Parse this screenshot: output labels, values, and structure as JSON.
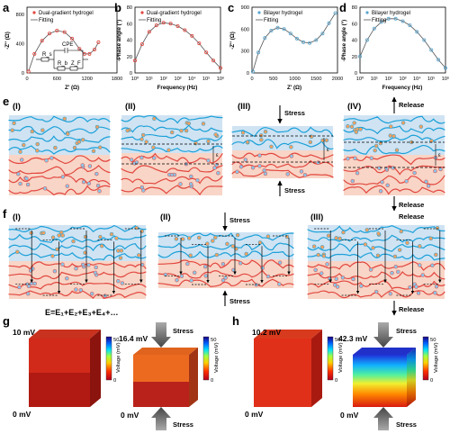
{
  "panels": {
    "a": {
      "label": "a",
      "ylabel": "-Z'' (Ω)",
      "xlabel": "Z' (Ω)",
      "xticks": [
        "0",
        "600",
        "1200",
        "1800"
      ],
      "yticks": [
        "0",
        "400",
        "800"
      ],
      "legend_data": "Dual-gradient hydrogel",
      "legend_fit": "Fitting",
      "circuit": {
        "rs": "R_s",
        "cpe": "CPE",
        "rb": "R_b",
        "zf": "Z_F"
      }
    },
    "b": {
      "label": "b",
      "ylabel": "-Phase angle (°)",
      "xlabel": "Frequency (Hz)",
      "xticks": [
        "10⁰",
        "10¹",
        "10²",
        "10³",
        "10⁴",
        "10⁵",
        "10⁶"
      ],
      "yticks": [
        "0",
        "20",
        "40",
        "60",
        "80"
      ],
      "legend_data": "Dual-gradient hydrogel",
      "legend_fit": "Fitting"
    },
    "c": {
      "label": "c",
      "ylabel": "-Z'' (Ω)",
      "xlabel": "Z' (Ω)",
      "xticks": [
        "0",
        "500",
        "1000",
        "1500",
        "2000"
      ],
      "yticks": [
        "0",
        "300",
        "600",
        "900"
      ],
      "legend_data": "Bilayer hydrogel",
      "legend_fit": "Fitting"
    },
    "d": {
      "label": "d",
      "ylabel": "-Phase angle (°)",
      "xlabel": "Frequency (Hz)",
      "xticks": [
        "10⁰",
        "10¹",
        "10²",
        "10³",
        "10⁴",
        "10⁵",
        "10⁶"
      ],
      "yticks": [
        "0",
        "20",
        "40",
        "60",
        "80"
      ],
      "legend_data": "Bilayer hydrogel",
      "legend_fit": "Fitting"
    },
    "e": {
      "label": "e",
      "stages": [
        "(I)",
        "(II)",
        "(III)",
        "(IV)"
      ],
      "stress": "Stress",
      "release": "Release",
      "eps": "ε"
    },
    "f": {
      "label": "f",
      "stages": [
        "(I)",
        "(II)",
        "(III)"
      ],
      "stress": "Stress",
      "release": "Release",
      "equation": "E=E₁+E₂+E₃+E₄+…",
      "eps_labels": [
        "ε₁",
        "ε₂",
        "ε₃",
        "ε₄"
      ]
    },
    "g": {
      "label": "g",
      "left_top": "10 mV",
      "left_bottom": "0 mV",
      "right_top": "16.4 mV",
      "right_bottom": "0 mV",
      "colorbar_title": "Voltage (mV)",
      "cb_max": "50",
      "cb_min": "0",
      "stress": "Stress"
    },
    "h": {
      "label": "h",
      "left_top": "10.2 mV",
      "left_bottom": "0 mV",
      "right_top": "42.3 mV",
      "right_bottom": "0 mV",
      "colorbar_title": "Voltage (mV)",
      "cb_max": "50",
      "cb_min": "0",
      "stress": "Stress"
    }
  },
  "colors": {
    "blue_layer": "#cfe3f3",
    "red_layer": "#f8d5c6",
    "blue_chain": "#1aa0d8",
    "red_chain": "#e2463f",
    "data_a": "#e2463f",
    "data_c": "#5aa6cf",
    "fit": "#555555"
  },
  "chart_data": [
    {
      "panel": "a",
      "type": "scatter",
      "series": [
        {
          "name": "Dual-gradient hydrogel",
          "x": [
            30,
            150,
            300,
            450,
            600,
            750,
            900,
            1050,
            1150,
            1250,
            1350,
            1430
          ],
          "y": [
            20,
            260,
            440,
            540,
            580,
            560,
            470,
            330,
            260,
            260,
            320,
            420
          ]
        },
        {
          "name": "Fitting",
          "x": [
            30,
            150,
            300,
            450,
            600,
            750,
            900,
            1050,
            1150,
            1250,
            1350,
            1430
          ],
          "y": [
            20,
            260,
            440,
            540,
            580,
            560,
            470,
            330,
            260,
            260,
            320,
            420
          ]
        }
      ],
      "xlim": [
        0,
        1800
      ],
      "ylim": [
        0,
        900
      ]
    },
    {
      "panel": "b",
      "type": "scatter",
      "series": [
        {
          "name": "Dual-gradient hydrogel",
          "x": [
            0,
            0.5,
            1,
            1.5,
            2,
            2.5,
            3,
            3.5,
            4,
            4.5,
            5,
            5.5,
            6
          ],
          "y": [
            15,
            35,
            50,
            58,
            61,
            60,
            57,
            52,
            45,
            36,
            25,
            15,
            6
          ]
        },
        {
          "name": "Fitting",
          "x": [
            0,
            0.5,
            1,
            1.5,
            2,
            2.5,
            3,
            3.5,
            4,
            4.5,
            5,
            5.5,
            6
          ],
          "y": [
            15,
            35,
            50,
            58,
            61,
            60,
            57,
            52,
            45,
            36,
            25,
            15,
            6
          ]
        }
      ],
      "xlim": [
        0,
        6
      ],
      "ylim": [
        0,
        80
      ]
    },
    {
      "panel": "c",
      "type": "scatter",
      "series": [
        {
          "name": "Bilayer hydrogel",
          "x": [
            20,
            150,
            300,
            450,
            600,
            750,
            900,
            1050,
            1200,
            1350,
            1500,
            1650,
            1800,
            1950
          ],
          "y": [
            20,
            280,
            480,
            580,
            620,
            600,
            540,
            470,
            420,
            410,
            450,
            540,
            680,
            820
          ]
        },
        {
          "name": "Fitting",
          "x": [
            20,
            150,
            300,
            450,
            600,
            750,
            900,
            1050,
            1200,
            1350,
            1500,
            1650,
            1800,
            1950
          ],
          "y": [
            20,
            280,
            480,
            580,
            620,
            600,
            540,
            470,
            420,
            410,
            450,
            540,
            680,
            820
          ]
        }
      ],
      "xlim": [
        0,
        2000
      ],
      "ylim": [
        0,
        900
      ]
    },
    {
      "panel": "d",
      "type": "scatter",
      "series": [
        {
          "name": "Bilayer hydrogel",
          "x": [
            0,
            0.5,
            1,
            1.5,
            2,
            2.5,
            3,
            3.5,
            4,
            4.5,
            5,
            5.5,
            6
          ],
          "y": [
            20,
            40,
            54,
            62,
            66,
            66,
            63,
            58,
            50,
            40,
            28,
            16,
            6
          ]
        },
        {
          "name": "Fitting",
          "x": [
            0,
            0.5,
            1,
            1.5,
            2,
            2.5,
            3,
            3.5,
            4,
            4.5,
            5,
            5.5,
            6
          ],
          "y": [
            20,
            40,
            54,
            62,
            66,
            66,
            63,
            58,
            50,
            40,
            28,
            16,
            6
          ]
        }
      ],
      "xlim": [
        0,
        6
      ],
      "ylim": [
        0,
        80
      ]
    }
  ]
}
